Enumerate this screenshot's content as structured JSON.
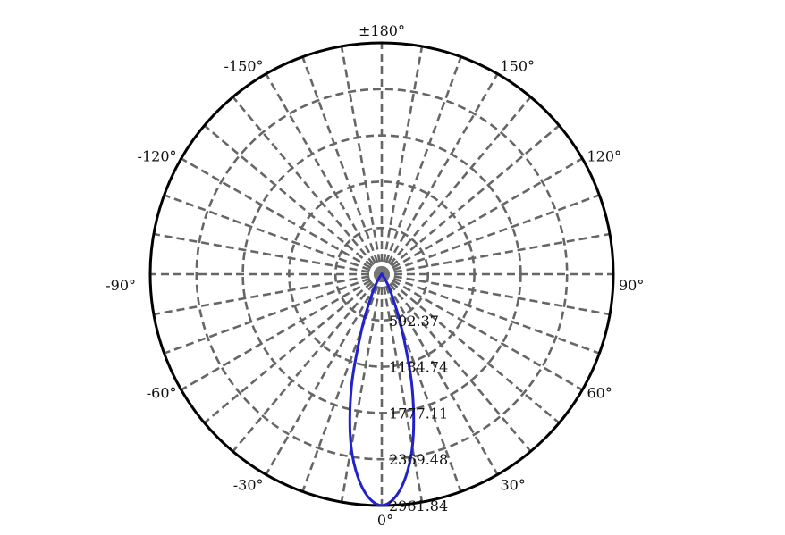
{
  "chart_data": {
    "type": "polar",
    "title": "",
    "radial_axis": {
      "max": 2961.84,
      "rings": [
        592.37,
        1184.74,
        1777.11,
        2369.48,
        2961.84
      ],
      "ring_labels": [
        "592.37",
        "1184.74",
        "1777.11",
        "2369.48",
        "2961.84"
      ]
    },
    "angular_axis": {
      "zero_direction": "bottom",
      "spoke_step_deg": 10,
      "labels": [
        {
          "angle": 0,
          "text": "0°"
        },
        {
          "angle": 30,
          "text": "30°"
        },
        {
          "angle": 60,
          "text": "60°"
        },
        {
          "angle": 90,
          "text": "90°"
        },
        {
          "angle": 120,
          "text": "120°"
        },
        {
          "angle": 150,
          "text": "150°"
        },
        {
          "angle": 180,
          "text": "±180°"
        },
        {
          "angle": -150,
          "text": "-150°"
        },
        {
          "angle": -120,
          "text": "-120°"
        },
        {
          "angle": -90,
          "text": "-90°"
        },
        {
          "angle": -60,
          "text": "-60°"
        },
        {
          "angle": -30,
          "text": "-30°"
        }
      ]
    },
    "grid": true,
    "series": [
      {
        "color": "#2222cc",
        "angles": [
          -90,
          -80,
          -70,
          -60,
          -50,
          -40,
          -35,
          -30,
          -25,
          -20,
          -15,
          -10,
          -5,
          0,
          5,
          10,
          15,
          20,
          25,
          30,
          35,
          40,
          50,
          60,
          70,
          80,
          90
        ],
        "values": [
          0,
          0,
          0,
          0,
          0,
          0,
          60,
          150,
          330,
          750,
          1500,
          2250,
          2760,
          2961.84,
          2760,
          2250,
          1500,
          750,
          330,
          150,
          60,
          0,
          0,
          0,
          0,
          0,
          0
        ]
      }
    ]
  },
  "colors": {
    "outer_circle": "#000000",
    "grid": "#666666",
    "series": "#2222cc",
    "center_dot": "#777777"
  }
}
